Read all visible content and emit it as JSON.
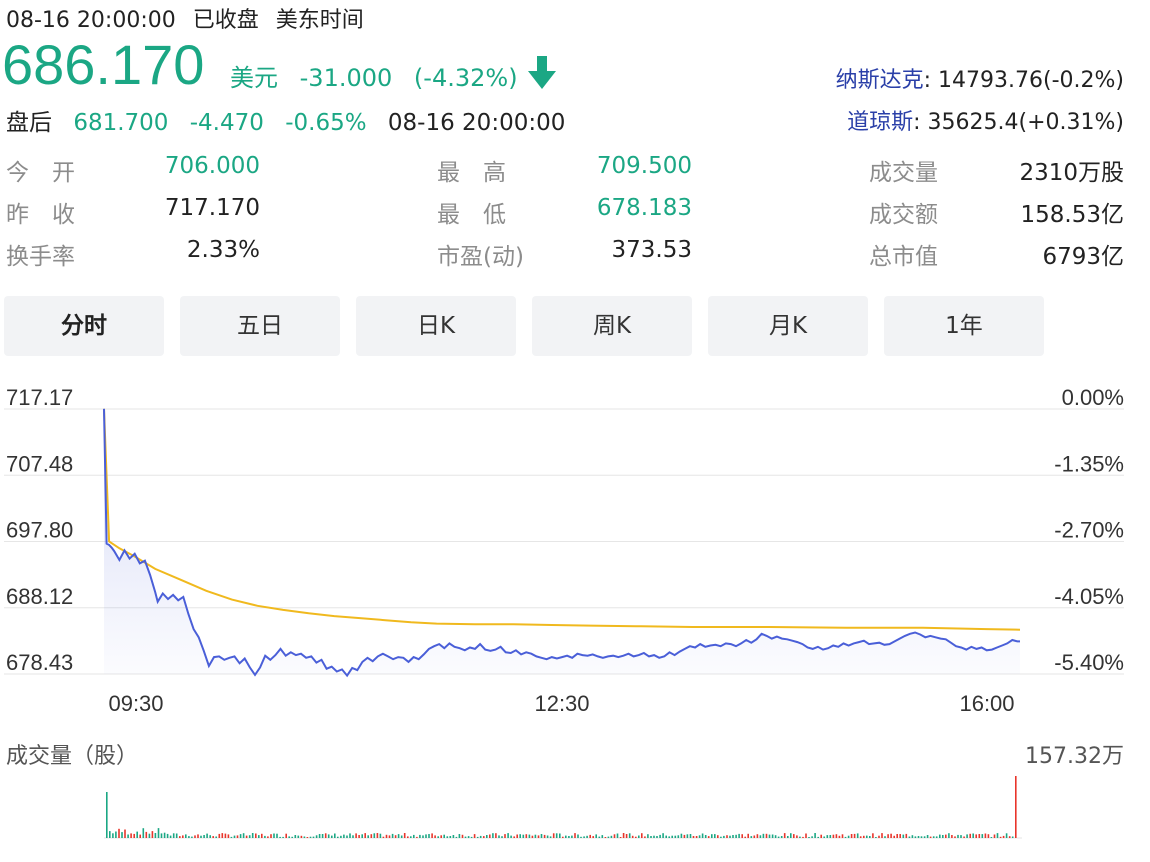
{
  "header": {
    "datetime": "08-16 20:00:00",
    "status": "已收盘",
    "timezone": "美东时间"
  },
  "quote": {
    "price": "686.170",
    "currency": "美元",
    "change": "-31.000",
    "change_pct": "(-4.32%)",
    "direction_icon": "arrow-down-icon"
  },
  "after_hours": {
    "label": "盘后",
    "price": "681.700",
    "change": "-4.470",
    "change_pct": "-0.65%",
    "time": "08-16 20:00:00"
  },
  "indices": [
    {
      "name": "纳斯达克",
      "value": ": 14793.76(-0.2%)"
    },
    {
      "name": "道琼斯",
      "value": ": 35625.4(+0.31%)"
    }
  ],
  "stats": [
    {
      "label": "今　开",
      "value": "706.000",
      "color": "#1ba784"
    },
    {
      "label": "最　高",
      "value": "709.500",
      "color": "#1ba784"
    },
    {
      "label": "成交量",
      "value": "2310万股",
      "color": "#222222"
    },
    {
      "label": "昨　收",
      "value": "717.170",
      "color": "#222222"
    },
    {
      "label": "最　低",
      "value": "678.183",
      "color": "#1ba784"
    },
    {
      "label": "成交额",
      "value": "158.53亿",
      "color": "#222222"
    },
    {
      "label": "换手率",
      "value": "2.33%",
      "color": "#222222"
    },
    {
      "label": "市盈(动)",
      "value": "373.53",
      "color": "#222222"
    },
    {
      "label": "总市值",
      "value": "6793亿",
      "color": "#222222"
    }
  ],
  "tabs": [
    {
      "label": "分时",
      "active": true
    },
    {
      "label": "五日",
      "active": false
    },
    {
      "label": "日K",
      "active": false
    },
    {
      "label": "周K",
      "active": false
    },
    {
      "label": "月K",
      "active": false
    },
    {
      "label": "1年",
      "active": false
    }
  ],
  "colors": {
    "up": "#e8352b",
    "down": "#1ba784",
    "price_line": "#4a5fd8",
    "avg_line": "#f0b91e",
    "index_name": "#2a3fa8"
  },
  "chart_data": {
    "type": "line",
    "y_ticks_left": [
      "717.17",
      "707.48",
      "697.80",
      "688.12",
      "678.43"
    ],
    "y_ticks_right": [
      "0.00%",
      "-1.35%",
      "-2.70%",
      "-4.05%",
      "-5.40%"
    ],
    "x_ticks": [
      "09:30",
      "12:30",
      "16:00"
    ],
    "ylim": [
      678.43,
      717.17
    ],
    "x_range_minutes": [
      0,
      390
    ],
    "series": [
      {
        "key": "price",
        "points": [
          [
            0,
            717.2
          ],
          [
            1,
            697.5
          ],
          [
            2,
            697.3
          ],
          [
            3,
            696.9
          ],
          [
            4,
            696.4
          ],
          [
            6,
            695.1
          ],
          [
            8,
            696.5
          ],
          [
            10,
            695.3
          ],
          [
            12,
            696.0
          ],
          [
            14,
            694.6
          ],
          [
            16,
            695.0
          ],
          [
            18,
            692.9
          ],
          [
            20,
            690.4
          ],
          [
            21,
            689.0
          ],
          [
            23,
            690.2
          ],
          [
            25,
            689.4
          ],
          [
            27,
            690.0
          ],
          [
            29,
            689.2
          ],
          [
            31,
            689.7
          ],
          [
            33,
            687.2
          ],
          [
            35,
            685.0
          ],
          [
            37,
            683.8
          ],
          [
            39,
            681.8
          ],
          [
            41,
            679.6
          ],
          [
            43,
            680.9
          ],
          [
            45,
            681.0
          ],
          [
            47,
            680.5
          ],
          [
            49,
            680.8
          ],
          [
            51,
            681.0
          ],
          [
            53,
            680.0
          ],
          [
            55,
            680.7
          ],
          [
            57,
            679.4
          ],
          [
            59,
            678.3
          ],
          [
            61,
            679.4
          ],
          [
            63,
            681.1
          ],
          [
            65,
            680.5
          ],
          [
            67,
            681.2
          ],
          [
            69,
            682.1
          ],
          [
            71,
            681.1
          ],
          [
            73,
            681.6
          ],
          [
            75,
            681.2
          ],
          [
            77,
            681.4
          ],
          [
            79,
            680.8
          ],
          [
            81,
            681.0
          ],
          [
            83,
            680.1
          ],
          [
            85,
            680.5
          ],
          [
            87,
            679.2
          ],
          [
            89,
            679.5
          ],
          [
            91,
            678.8
          ],
          [
            93,
            679.1
          ],
          [
            95,
            678.2
          ],
          [
            97,
            679.3
          ],
          [
            99,
            679.0
          ],
          [
            101,
            680.2
          ],
          [
            103,
            680.8
          ],
          [
            105,
            680.3
          ],
          [
            107,
            681.0
          ],
          [
            109,
            681.4
          ],
          [
            111,
            681.0
          ],
          [
            113,
            680.6
          ],
          [
            115,
            680.9
          ],
          [
            117,
            680.8
          ],
          [
            119,
            680.2
          ],
          [
            121,
            680.9
          ],
          [
            123,
            680.6
          ],
          [
            125,
            681.3
          ],
          [
            127,
            682.1
          ],
          [
            129,
            682.5
          ],
          [
            131,
            682.8
          ],
          [
            133,
            682.2
          ],
          [
            135,
            682.9
          ],
          [
            137,
            682.4
          ],
          [
            139,
            682.2
          ],
          [
            141,
            681.9
          ],
          [
            143,
            682.3
          ],
          [
            145,
            682.1
          ],
          [
            147,
            682.8
          ],
          [
            149,
            682.0
          ],
          [
            151,
            681.8
          ],
          [
            153,
            682.0
          ],
          [
            155,
            682.4
          ],
          [
            157,
            681.6
          ],
          [
            159,
            681.5
          ],
          [
            161,
            681.9
          ],
          [
            163,
            681.3
          ],
          [
            165,
            681.6
          ],
          [
            167,
            681.4
          ],
          [
            169,
            681.0
          ],
          [
            171,
            680.8
          ],
          [
            173,
            680.6
          ],
          [
            175,
            680.9
          ],
          [
            177,
            680.7
          ],
          [
            179,
            680.9
          ],
          [
            181,
            681.1
          ],
          [
            183,
            680.8
          ],
          [
            185,
            681.4
          ],
          [
            187,
            681.2
          ],
          [
            189,
            681.1
          ],
          [
            191,
            681.3
          ],
          [
            193,
            681.0
          ],
          [
            195,
            680.8
          ],
          [
            197,
            681.0
          ],
          [
            199,
            681.1
          ],
          [
            201,
            680.9
          ],
          [
            203,
            681.1
          ],
          [
            205,
            681.4
          ],
          [
            207,
            681.0
          ],
          [
            209,
            681.2
          ],
          [
            211,
            681.5
          ],
          [
            213,
            681.0
          ],
          [
            215,
            681.2
          ],
          [
            217,
            680.8
          ],
          [
            219,
            681.0
          ],
          [
            221,
            681.6
          ],
          [
            223,
            681.2
          ],
          [
            225,
            681.7
          ],
          [
            227,
            682.1
          ],
          [
            229,
            682.5
          ],
          [
            231,
            682.3
          ],
          [
            233,
            682.8
          ],
          [
            235,
            682.4
          ],
          [
            237,
            682.6
          ],
          [
            239,
            682.7
          ],
          [
            241,
            682.5
          ],
          [
            243,
            682.9
          ],
          [
            245,
            682.8
          ],
          [
            247,
            682.5
          ],
          [
            249,
            682.9
          ],
          [
            251,
            683.4
          ],
          [
            253,
            683.0
          ],
          [
            255,
            683.5
          ],
          [
            257,
            684.3
          ],
          [
            259,
            684.0
          ],
          [
            261,
            683.6
          ],
          [
            263,
            683.9
          ],
          [
            265,
            683.6
          ],
          [
            267,
            683.5
          ],
          [
            269,
            683.3
          ],
          [
            271,
            683.1
          ],
          [
            273,
            682.8
          ],
          [
            275,
            682.3
          ],
          [
            277,
            682.1
          ],
          [
            279,
            682.4
          ],
          [
            281,
            682.0
          ],
          [
            283,
            682.2
          ],
          [
            285,
            682.6
          ],
          [
            287,
            682.4
          ],
          [
            289,
            682.9
          ],
          [
            291,
            682.6
          ],
          [
            293,
            682.9
          ],
          [
            295,
            683.1
          ],
          [
            297,
            683.3
          ],
          [
            299,
            682.8
          ],
          [
            301,
            682.9
          ],
          [
            303,
            683.0
          ],
          [
            305,
            682.7
          ],
          [
            307,
            682.8
          ],
          [
            309,
            683.2
          ],
          [
            311,
            683.6
          ],
          [
            313,
            684.0
          ],
          [
            315,
            684.3
          ],
          [
            317,
            684.5
          ],
          [
            319,
            684.2
          ],
          [
            321,
            683.8
          ],
          [
            323,
            684.0
          ],
          [
            325,
            683.8
          ],
          [
            327,
            683.6
          ],
          [
            329,
            683.5
          ],
          [
            331,
            683.0
          ],
          [
            333,
            682.5
          ],
          [
            335,
            682.3
          ],
          [
            337,
            682.0
          ],
          [
            339,
            682.4
          ],
          [
            341,
            682.1
          ],
          [
            343,
            682.3
          ],
          [
            345,
            681.9
          ],
          [
            347,
            682.0
          ],
          [
            349,
            682.3
          ],
          [
            351,
            682.6
          ],
          [
            353,
            682.9
          ],
          [
            355,
            683.4
          ],
          [
            357,
            683.2
          ],
          [
            358,
            683.2
          ]
        ]
      },
      {
        "key": "avg",
        "points": [
          [
            0,
            717.2
          ],
          [
            2,
            697.8
          ],
          [
            6,
            696.8
          ],
          [
            12,
            695.6
          ],
          [
            20,
            693.8
          ],
          [
            30,
            692.2
          ],
          [
            40,
            690.6
          ],
          [
            50,
            689.3
          ],
          [
            60,
            688.4
          ],
          [
            70,
            687.8
          ],
          [
            80,
            687.3
          ],
          [
            90,
            686.9
          ],
          [
            100,
            686.6
          ],
          [
            110,
            686.3
          ],
          [
            120,
            686.0
          ],
          [
            130,
            685.8
          ],
          [
            145,
            685.7
          ],
          [
            160,
            685.7
          ],
          [
            175,
            685.6
          ],
          [
            190,
            685.5
          ],
          [
            210,
            685.4
          ],
          [
            230,
            685.3
          ],
          [
            260,
            685.3
          ],
          [
            290,
            685.2
          ],
          [
            320,
            685.2
          ],
          [
            345,
            685.0
          ],
          [
            358,
            684.9
          ]
        ]
      }
    ],
    "volume": {
      "max_label": "157.32万",
      "title": "成交量（股）",
      "max": 157.32,
      "unit": "万"
    }
  }
}
